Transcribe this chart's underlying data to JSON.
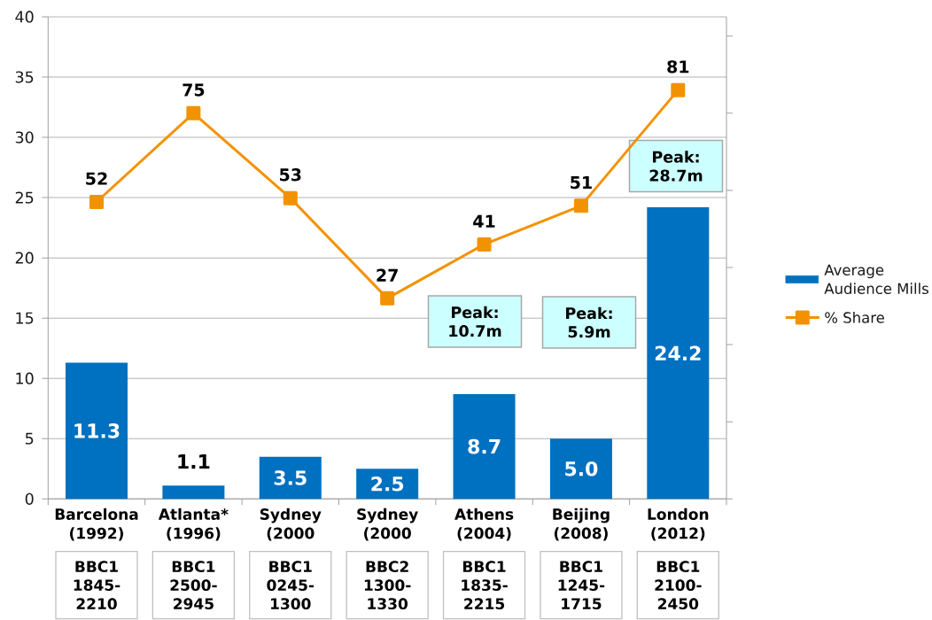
{
  "chart_data": {
    "type": "bar",
    "categories": [
      "Barcelona (1992)",
      "Atlanta* (1996)",
      "Sydney (2000",
      "Sydney (2000",
      "Athens (2004)",
      "Beijing (2008)",
      "London (2012)"
    ],
    "series": [
      {
        "name": "Average Audience Mills",
        "color": "#0070c0",
        "values": [
          11.3,
          1.1,
          3.5,
          2.5,
          8.7,
          5.0,
          24.2
        ],
        "value_labels": [
          "11.3",
          "1.1",
          "3.5",
          "2.5",
          "8.7",
          "5.0",
          "24.2"
        ]
      },
      {
        "name": "% Share",
        "type": "line",
        "axis": "y2",
        "color": "#f39200",
        "marker": "square",
        "values": [
          52,
          75,
          53,
          27,
          41,
          51,
          81
        ],
        "value_labels": [
          "52",
          "75",
          "53",
          "27",
          "41",
          "51",
          "81"
        ]
      }
    ],
    "ylim": [
      0,
      40
    ],
    "yticks": [
      0,
      5,
      10,
      15,
      20,
      25,
      30,
      35,
      40
    ],
    "y2lim": [
      -25,
      100
    ],
    "y2ticks": [
      {
        "value": -25,
        "label": null
      },
      {
        "value": -5,
        "label": null
      },
      {
        "value": 15,
        "label": null
      },
      {
        "value": 35,
        "label": null
      },
      {
        "value": 55,
        "label": null
      },
      {
        "value": 75,
        "label": null
      },
      {
        "value": 95,
        "label": null
      }
    ],
    "grid": "y",
    "legend": "right",
    "annotations": [
      "Peak: 10.7m",
      "Peak: 5.9m",
      "Peak: 28.7m",
      "BBC1 1845-2210",
      "BBC1 2500-2945",
      "BBC1 0245-1300",
      "BBC2 1300-1330",
      "BBC1 1835-2215",
      "BBC1 1245-1715",
      "BBC1 2100-2450"
    ]
  }
}
